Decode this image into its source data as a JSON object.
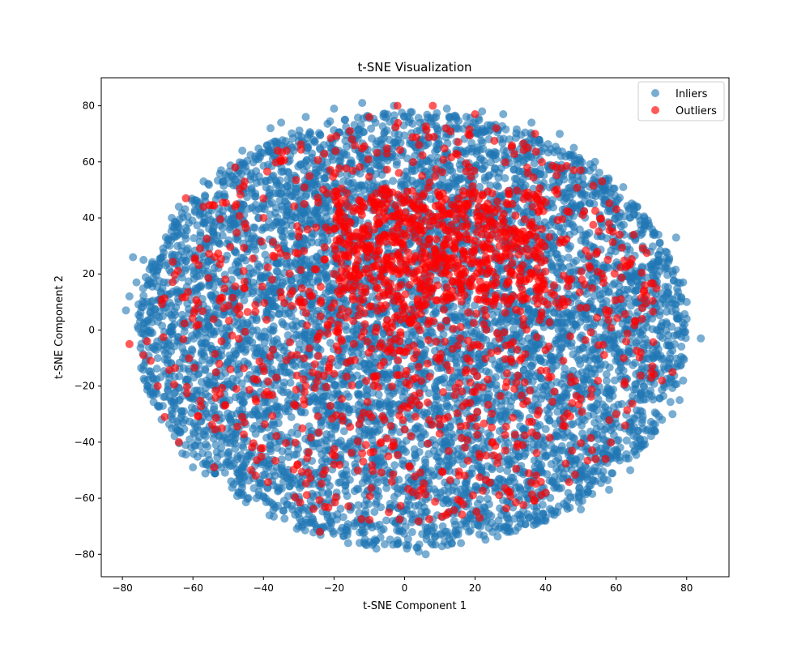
{
  "chart_data": {
    "type": "scatter",
    "title": "t-SNE Visualization",
    "xlabel": "t-SNE Component 1",
    "ylabel": "t-SNE Component 2",
    "xlim": [
      -86,
      92
    ],
    "ylim": [
      -88,
      90
    ],
    "x_ticks": [
      -80,
      -60,
      -40,
      -20,
      0,
      20,
      40,
      60,
      80
    ],
    "y_ticks": [
      -80,
      -60,
      -40,
      -20,
      0,
      20,
      40,
      60,
      80
    ],
    "x_tick_labels": [
      "−80",
      "−60",
      "−40",
      "−20",
      "0",
      "20",
      "40",
      "60",
      "80"
    ],
    "y_tick_labels": [
      "−80",
      "−60",
      "−40",
      "−20",
      "0",
      "20",
      "40",
      "60",
      "80"
    ],
    "grid": false,
    "legend_position": "top-right",
    "series": [
      {
        "name": "Inliers",
        "color": "#1f77b4",
        "alpha": 0.6,
        "dense_region": {
          "center": [
            2,
            0
          ],
          "semi_axes": [
            78,
            78
          ]
        },
        "points": [
          [
            -78,
            12
          ],
          [
            -79,
            7
          ],
          [
            -77,
            26
          ],
          [
            -74,
            25
          ],
          [
            -76,
            17
          ],
          [
            -75,
            3
          ],
          [
            -73,
            10
          ],
          [
            -72,
            -22
          ],
          [
            -70,
            -10
          ],
          [
            -70,
            -27
          ],
          [
            -66,
            40
          ],
          [
            -64,
            44
          ],
          [
            -63,
            -44
          ],
          [
            -60,
            -49
          ],
          [
            -57,
            53
          ],
          [
            -52,
            57
          ],
          [
            -46,
            64
          ],
          [
            -47,
            -58
          ],
          [
            -42,
            -60
          ],
          [
            -38,
            72
          ],
          [
            -35,
            74
          ],
          [
            -30,
            -70
          ],
          [
            -28,
            76
          ],
          [
            -24,
            -72
          ],
          [
            -20,
            79
          ],
          [
            -16,
            -76
          ],
          [
            -12,
            81
          ],
          [
            -8,
            -78
          ],
          [
            -3,
            80
          ],
          [
            4,
            -79
          ],
          [
            6,
            -80
          ],
          [
            12,
            79
          ],
          [
            16,
            -76
          ],
          [
            22,
            78
          ],
          [
            28,
            77
          ],
          [
            30,
            -72
          ],
          [
            36,
            74
          ],
          [
            40,
            -68
          ],
          [
            44,
            70
          ],
          [
            48,
            65
          ],
          [
            50,
            -64
          ],
          [
            54,
            60
          ],
          [
            58,
            -57
          ],
          [
            62,
            51
          ],
          [
            64,
            -50
          ],
          [
            66,
            44
          ],
          [
            68,
            40
          ],
          [
            70,
            -36
          ],
          [
            72,
            34
          ],
          [
            73,
            -32
          ],
          [
            74,
            28
          ],
          [
            75,
            25
          ],
          [
            76,
            21
          ],
          [
            77,
            33
          ],
          [
            78,
            -25
          ],
          [
            79,
            17
          ],
          [
            79,
            -18
          ],
          [
            80,
            10
          ],
          [
            78,
            5
          ],
          [
            79,
            -10
          ],
          [
            84,
            -3
          ],
          [
            80,
            4
          ],
          [
            76,
            -30
          ],
          [
            72,
            25
          ],
          [
            -72,
            -16
          ]
        ]
      },
      {
        "name": "Outliers",
        "color": "#ff0000",
        "alpha": 0.65,
        "points": [
          [
            -78,
            -5
          ],
          [
            -74,
            -9
          ],
          [
            -72,
            -11
          ],
          [
            -73,
            -4
          ],
          [
            -70,
            -20
          ],
          [
            -68,
            -31
          ],
          [
            -64,
            -40
          ],
          [
            -62,
            47
          ],
          [
            -57,
            44
          ],
          [
            -54,
            -49
          ],
          [
            -48,
            58
          ],
          [
            -36,
            64
          ],
          [
            -24,
            -72
          ],
          [
            -10,
            76
          ],
          [
            -2,
            80
          ],
          [
            8,
            80
          ],
          [
            20,
            77
          ],
          [
            26,
            72
          ],
          [
            35,
            65
          ],
          [
            37,
            70
          ],
          [
            43,
            58
          ],
          [
            48,
            57
          ],
          [
            50,
            57
          ],
          [
            56,
            53
          ],
          [
            58,
            38
          ],
          [
            61,
            34
          ],
          [
            65,
            34
          ],
          [
            67,
            -8
          ],
          [
            70,
            -15
          ],
          [
            76,
            -15
          ],
          [
            73,
            -18
          ],
          [
            60,
            -30
          ],
          [
            57,
            -46
          ],
          [
            40,
            -58
          ],
          [
            -20,
            -48
          ],
          [
            -40,
            40
          ],
          [
            -20,
            20
          ],
          [
            0,
            40
          ],
          [
            20,
            30
          ],
          [
            30,
            20
          ],
          [
            10,
            -10
          ],
          [
            -10,
            -30
          ],
          [
            25,
            -40
          ],
          [
            -30,
            10
          ],
          [
            45,
            10
          ],
          [
            5,
            55
          ],
          [
            -5,
            45
          ]
        ]
      }
    ]
  }
}
